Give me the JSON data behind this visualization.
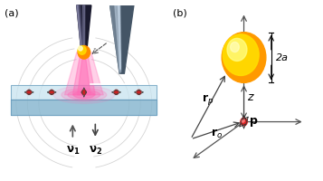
{
  "bg_color": "#ffffff",
  "panel_a_label": "(a)",
  "panel_b_label": "(b)",
  "fiber_dark": "#1a1a2e",
  "fiber_mid": "#4a4a6a",
  "fiber_light": "#aaaacc",
  "glass_top": "#c8e4f0",
  "glass_front": "#8ab8d0",
  "glass_outline": "#6699bb",
  "glow_color": "#ff69b4",
  "nano_yellow": "#ffd700",
  "nano_orange": "#ff8c00",
  "mol_red": "#cc2222",
  "inset_bg": "#0a0a0a",
  "inset_fiber_gray": "#777799",
  "inset_fiber_light": "#aabbcc",
  "arrow_dark": "#333333",
  "axis_color": "#555555",
  "sphere_base": "#ff9900",
  "sphere_yellow": "#ffee00",
  "sphere_highlight": "#ffff99"
}
